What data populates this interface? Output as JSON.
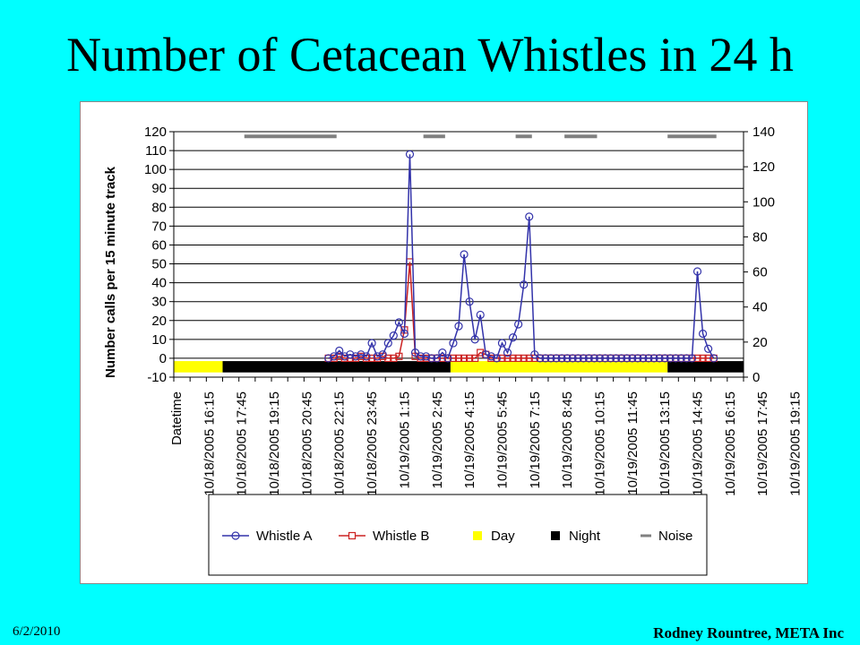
{
  "slide": {
    "title": "Number of Cetacean Whistles in 24 h",
    "date": "6/2/2010",
    "author": "Rodney Rountree, META Inc"
  },
  "colors": {
    "whistle_a": "#3333AA",
    "whistle_b": "#CC2222",
    "day": "#FFFF00",
    "night": "#000000",
    "noise": "#808080",
    "background": "#00FFFF"
  },
  "chart_data": {
    "type": "line",
    "ylabel": "Number calls per 15 minute track",
    "ylim": [
      -10,
      120
    ],
    "yticks": [
      -10,
      0,
      10,
      20,
      30,
      40,
      50,
      60,
      70,
      80,
      90,
      100,
      110,
      120
    ],
    "y2lim": [
      0,
      140
    ],
    "y2ticks": [
      0,
      20,
      40,
      60,
      80,
      100,
      120,
      140
    ],
    "grid": true,
    "legend_position": "bottom",
    "x_count": 105,
    "x_tick_labels": [
      "Datetime",
      "10/18/2005 16:15",
      "10/18/2005 17:45",
      "10/18/2005 19:15",
      "10/18/2005 20:45",
      "10/18/2005 22:15",
      "10/18/2005 23:45",
      "10/19/2005 1:15",
      "10/19/2005 2:45",
      "10/19/2005 4:15",
      "10/19/2005 5:45",
      "10/19/2005 7:15",
      "10/19/2005 8:45",
      "10/19/2005 10:15",
      "10/19/2005 11:45",
      "10/19/2005 13:15",
      "10/19/2005 14:45",
      "10/19/2005 16:15",
      "10/19/2005 17:45",
      "10/19/2005 19:15"
    ],
    "legend": [
      "Whistle A",
      "Whistle B",
      "Day",
      "Night",
      "Noise"
    ],
    "series": [
      {
        "name": "Whistle A",
        "x": [
          28,
          29,
          30,
          31,
          32,
          33,
          34,
          35,
          36,
          37,
          38,
          39,
          40,
          41,
          42,
          43,
          44,
          45,
          46,
          47,
          48,
          49,
          50,
          51,
          52,
          53,
          54,
          55,
          56,
          57,
          58,
          59,
          60,
          61,
          62,
          63,
          64,
          65,
          66,
          67,
          68,
          69,
          70,
          71,
          72,
          73,
          74,
          75,
          76,
          77,
          78,
          79,
          80,
          81,
          82,
          83,
          84,
          85,
          86,
          87,
          88,
          89,
          90,
          91,
          92,
          93,
          94,
          95,
          96,
          97,
          98,
          99
        ],
        "values": [
          0,
          1,
          4,
          1,
          2,
          1,
          2,
          1,
          8,
          1,
          2,
          8,
          12,
          19,
          13,
          108,
          3,
          1,
          1,
          0,
          0,
          3,
          0,
          8,
          17,
          55,
          30,
          10,
          23,
          2,
          1,
          0,
          8,
          3,
          11,
          18,
          39,
          75,
          2,
          0,
          0,
          0,
          0,
          0,
          0,
          0,
          0,
          0,
          0,
          0,
          0,
          0,
          0,
          0,
          0,
          0,
          0,
          0,
          0,
          0,
          0,
          0,
          0,
          0,
          0,
          0,
          0,
          0,
          46,
          13,
          5,
          0
        ]
      },
      {
        "name": "Whistle B",
        "x": [
          28,
          29,
          30,
          31,
          32,
          33,
          34,
          35,
          36,
          37,
          38,
          39,
          40,
          41,
          42,
          43,
          44,
          45,
          46,
          47,
          48,
          49,
          50,
          51,
          52,
          53,
          54,
          55,
          56,
          57,
          58,
          59,
          60,
          61,
          62,
          63,
          64,
          65,
          66,
          67,
          68,
          69,
          70,
          71,
          72,
          73,
          74,
          75,
          76,
          77,
          78,
          79,
          80,
          81,
          82,
          83,
          84,
          85,
          86,
          87,
          88,
          89,
          90,
          91,
          92,
          93,
          94,
          95,
          96,
          97,
          98,
          99
        ],
        "values": [
          0,
          0,
          1,
          0,
          0,
          0,
          1,
          0,
          0,
          0,
          1,
          0,
          0,
          1,
          15,
          51,
          1,
          0,
          0,
          0,
          0,
          0,
          0,
          0,
          0,
          0,
          0,
          0,
          3,
          2,
          0,
          0,
          0,
          0,
          0,
          0,
          0,
          0,
          0,
          0,
          0,
          0,
          0,
          0,
          0,
          0,
          0,
          0,
          0,
          0,
          0,
          0,
          0,
          0,
          0,
          0,
          0,
          0,
          0,
          0,
          0,
          0,
          0,
          0,
          0,
          0,
          0,
          0,
          0,
          0,
          0,
          0
        ]
      }
    ],
    "day_night_periods": [
      {
        "type": "Day",
        "start": 0,
        "end": 9
      },
      {
        "type": "Night",
        "start": 9,
        "end": 51
      },
      {
        "type": "Day",
        "start": 51,
        "end": 91
      },
      {
        "type": "Night",
        "start": 91,
        "end": 105
      }
    ],
    "noise_periods": [
      {
        "start": 13,
        "end": 30
      },
      {
        "start": 46,
        "end": 50
      },
      {
        "start": 63,
        "end": 66
      },
      {
        "start": 72,
        "end": 78
      },
      {
        "start": 91,
        "end": 100
      }
    ]
  }
}
